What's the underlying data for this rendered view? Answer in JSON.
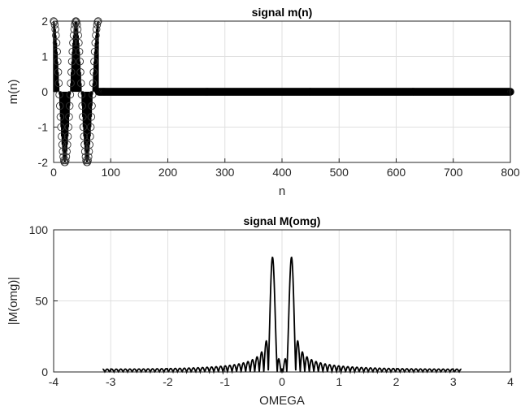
{
  "chart_data": [
    {
      "type": "scatter",
      "style": "stem",
      "title": "signal m(n)",
      "xlabel": "n",
      "ylabel": "m(n)",
      "xlim": [
        0,
        800
      ],
      "ylim": [
        -2,
        2
      ],
      "xticks": [
        "0",
        "100",
        "200",
        "300",
        "400",
        "500",
        "600",
        "700",
        "800"
      ],
      "yticks": [
        "-2",
        "-1",
        "0",
        "1",
        "2"
      ],
      "grid": true,
      "signal": {
        "formula": "m(n) = 2*cos(2*pi*n/39) for 0<=n<=78, else 0",
        "amplitude": 2,
        "period": 39,
        "nonzero_length": 79,
        "n_max": 800
      },
      "color": "#000000"
    },
    {
      "type": "line",
      "title": "signal M(omg)",
      "xlabel": "OMEGA",
      "ylabel": "|M(omg)|",
      "xlim": [
        -4,
        4
      ],
      "ylim": [
        0,
        100
      ],
      "xticks": [
        "-4",
        "-3",
        "-2",
        "-1",
        "0",
        "1",
        "2",
        "3",
        "4"
      ],
      "yticks": [
        "0",
        "50",
        "100"
      ],
      "grid": true,
      "omega_range": [
        -3.1416,
        3.1416
      ],
      "description": "magnitude of DTFT of m(n); peaks ~79 at omega = +/-0.161",
      "color": "#000000"
    }
  ]
}
